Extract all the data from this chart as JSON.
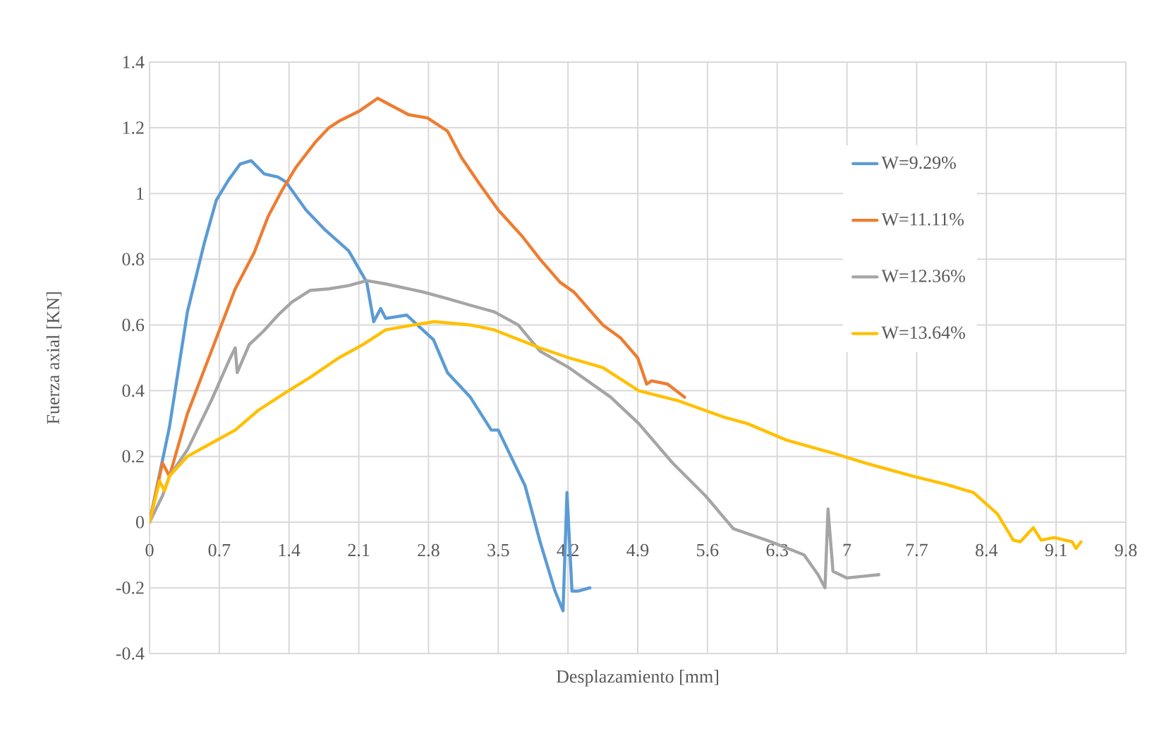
{
  "chart_data": {
    "type": "line",
    "xlabel": "Desplazamiento [mm]",
    "ylabel": "Fuerza axial [KN]",
    "xlim": [
      0,
      9.8
    ],
    "ylim": [
      -0.4,
      1.4
    ],
    "xticks": [
      0,
      0.7,
      1.4,
      2.1,
      2.8,
      3.5,
      4.2,
      4.9,
      5.6,
      6.3,
      7,
      7.7,
      8.4,
      9.1,
      9.8
    ],
    "yticks": [
      -0.4,
      -0.2,
      0,
      0.2,
      0.4,
      0.6,
      0.8,
      1,
      1.2,
      1.4
    ],
    "grid": true,
    "legend": "top right",
    "marker": "none",
    "line_style": "solid",
    "series": [
      {
        "name": "W=9.29%",
        "color": "#5b9bd5",
        "x": [
          0,
          0.2,
          0.38,
          0.55,
          0.67,
          0.79,
          0.91,
          1.02,
          1.15,
          1.29,
          1.37,
          1.57,
          1.76,
          2.0,
          2.18,
          2.25,
          2.32,
          2.37,
          2.58,
          2.85,
          2.99,
          3.22,
          3.43,
          3.5,
          3.77,
          3.92,
          4.07,
          4.15,
          4.19,
          4.24,
          4.3,
          4.42
        ],
        "values": [
          0,
          0.29,
          0.64,
          0.85,
          0.98,
          1.04,
          1.09,
          1.1,
          1.06,
          1.05,
          1.035,
          0.95,
          0.89,
          0.825,
          0.73,
          0.61,
          0.65,
          0.62,
          0.63,
          0.555,
          0.455,
          0.38,
          0.28,
          0.28,
          0.11,
          -0.06,
          -0.21,
          -0.27,
          0.09,
          -0.21,
          -0.21,
          -0.2
        ]
      },
      {
        "name": "W=11.11%",
        "color": "#ed7d31",
        "x": [
          0,
          0.13,
          0.2,
          0.38,
          0.62,
          0.86,
          1.05,
          1.19,
          1.33,
          1.47,
          1.66,
          1.8,
          1.9,
          2.1,
          2.29,
          2.6,
          2.79,
          2.99,
          3.13,
          3.31,
          3.5,
          3.74,
          3.92,
          4.12,
          4.26,
          4.55,
          4.73,
          4.9,
          4.99,
          5.04,
          5.2,
          5.37
        ],
        "values": [
          0,
          0.18,
          0.14,
          0.33,
          0.52,
          0.71,
          0.82,
          0.93,
          1.01,
          1.08,
          1.155,
          1.2,
          1.22,
          1.25,
          1.29,
          1.24,
          1.23,
          1.19,
          1.11,
          1.03,
          0.95,
          0.87,
          0.8,
          0.73,
          0.7,
          0.6,
          0.56,
          0.5,
          0.42,
          0.43,
          0.42,
          0.38
        ]
      },
      {
        "name": "W=12.36%",
        "color": "#a5a5a5",
        "x": [
          0,
          0.13,
          0.2,
          0.38,
          0.62,
          0.81,
          0.86,
          0.88,
          1.0,
          1.14,
          1.29,
          1.43,
          1.61,
          1.8,
          2.0,
          2.18,
          2.37,
          2.75,
          2.99,
          3.22,
          3.46,
          3.7,
          3.92,
          4.21,
          4.63,
          4.91,
          5.25,
          5.58,
          5.86,
          6.24,
          6.57,
          6.71,
          6.78,
          6.81,
          6.86,
          7.0,
          7.32
        ],
        "values": [
          0,
          0.08,
          0.14,
          0.22,
          0.37,
          0.5,
          0.53,
          0.455,
          0.54,
          0.58,
          0.63,
          0.67,
          0.705,
          0.71,
          0.72,
          0.735,
          0.725,
          0.7,
          0.68,
          0.66,
          0.64,
          0.6,
          0.52,
          0.47,
          0.38,
          0.3,
          0.18,
          0.08,
          -0.02,
          -0.06,
          -0.1,
          -0.16,
          -0.2,
          0.04,
          -0.15,
          -0.17,
          -0.16
        ]
      },
      {
        "name": "W=13.64%",
        "color": "#ffc000",
        "x": [
          0,
          0.1,
          0.15,
          0.2,
          0.38,
          0.62,
          0.86,
          1.09,
          1.37,
          1.61,
          1.9,
          2.14,
          2.37,
          2.65,
          2.86,
          3.22,
          3.46,
          3.92,
          4.21,
          4.55,
          4.91,
          5.3,
          5.76,
          6.0,
          6.39,
          6.86,
          7.18,
          7.66,
          7.99,
          8.27,
          8.51,
          8.67,
          8.74,
          8.87,
          8.95,
          9.08,
          9.26,
          9.3,
          9.35
        ],
        "values": [
          0,
          0.125,
          0.095,
          0.14,
          0.2,
          0.24,
          0.28,
          0.34,
          0.395,
          0.44,
          0.5,
          0.54,
          0.585,
          0.6,
          0.61,
          0.6,
          0.585,
          0.53,
          0.5,
          0.47,
          0.4,
          0.37,
          0.32,
          0.3,
          0.25,
          0.21,
          0.18,
          0.14,
          0.115,
          0.09,
          0.025,
          -0.055,
          -0.06,
          -0.017,
          -0.055,
          -0.047,
          -0.06,
          -0.08,
          -0.06
        ]
      }
    ]
  }
}
